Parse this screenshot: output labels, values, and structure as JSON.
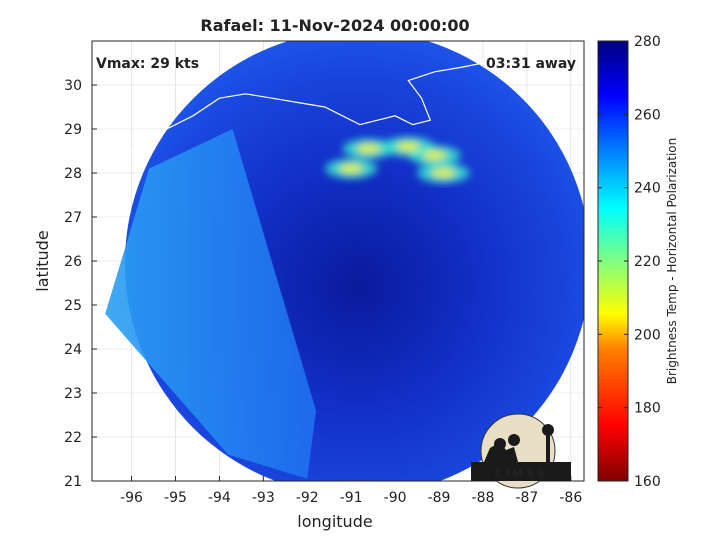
{
  "title": "Rafael: 11-Nov-2024 00:00:00",
  "vmax_label": "Vmax: 29 kts",
  "time_label": "03:31 away",
  "xlabel": "longitude",
  "ylabel": "latitude",
  "colorbar_label": "Brightness Temp - Horizontal Polarization",
  "logo_text": "CIMSS",
  "colors": {
    "background": "#ffffff",
    "grid": "#d9d9d9",
    "coast": "#ffffff"
  },
  "map": {
    "lon_range": [
      -96.9,
      -85.7
    ],
    "lat_range": [
      21,
      31
    ],
    "x_ticks": [
      -96,
      -95,
      -94,
      -93,
      -92,
      -91,
      -90,
      -89,
      -88,
      -87,
      -86
    ],
    "y_ticks": [
      21,
      22,
      23,
      24,
      25,
      26,
      27,
      28,
      29,
      30
    ],
    "grid": true,
    "swath_center": [
      -90.85,
      25.95
    ],
    "swath_radius_deg": 5.3,
    "coldest_band_lon_lat": [
      [
        -90.6,
        28.55
      ],
      [
        -89.7,
        28.6
      ],
      [
        -89.1,
        28.4
      ],
      [
        -88.9,
        28.0
      ],
      [
        -91.0,
        28.1
      ]
    ]
  },
  "colorbar": {
    "min": 160,
    "max": 280,
    "ticks": [
      160,
      180,
      200,
      220,
      240,
      260,
      280
    ],
    "colormap": [
      "#7f0000",
      "#ff0000",
      "#ff8000",
      "#ffff00",
      "#80ff80",
      "#00ffff",
      "#0080ff",
      "#0000ff",
      "#000080"
    ]
  }
}
